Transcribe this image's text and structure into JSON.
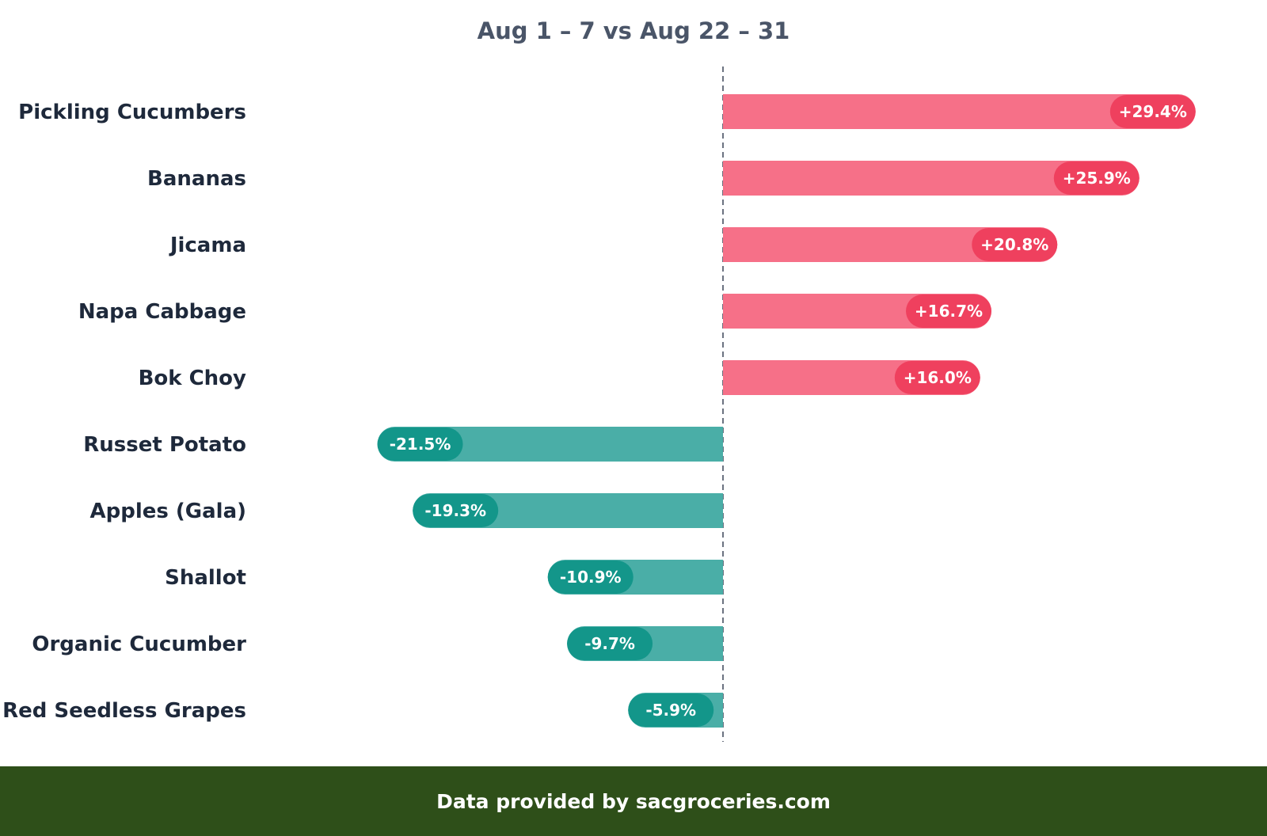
{
  "chart_data": {
    "type": "bar",
    "orientation": "horizontal",
    "title": "Aug 1 – 7 vs Aug 22 – 31",
    "categories": [
      "Pickling Cucumbers",
      "Bananas",
      "Jicama",
      "Napa Cabbage",
      "Bok Choy",
      "Russet Potato",
      "Apples (Gala)",
      "Shallot",
      "Organic Cucumber",
      "Red Seedless Grapes"
    ],
    "values": [
      29.4,
      25.9,
      20.8,
      16.7,
      16.0,
      -21.5,
      -19.3,
      -10.9,
      -9.7,
      -5.9
    ],
    "value_labels": [
      "+29.4%",
      "+25.9%",
      "+20.8%",
      "+16.7%",
      "+16.0%",
      "-21.5%",
      "-19.3%",
      "-10.9%",
      "-9.7%",
      "-5.9%"
    ],
    "xlim": [
      -24,
      40
    ],
    "zero_line": "dashed",
    "grid": false,
    "colors": {
      "positive_bar": "#f67088",
      "positive_badge": "#ef405e",
      "negative_bar": "#4aaea7",
      "negative_badge": "#13968a",
      "zero_line": "#6b7280",
      "category_text": "#1e293b",
      "title_text": "#4a5568"
    }
  },
  "footer": {
    "text": "Data provided by sacgroceries.com",
    "background": "#2e4f19"
  }
}
